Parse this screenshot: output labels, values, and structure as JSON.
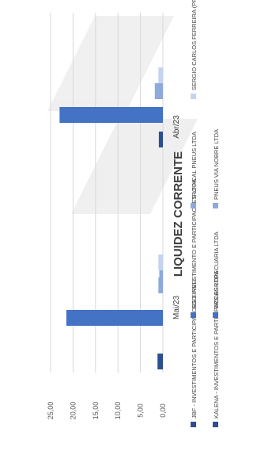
{
  "chart_data": {
    "type": "bar",
    "orientation": "horizontal-bars-rotated-view",
    "title": "LIQUIDEZ CORRENTE",
    "categories": [
      "Mai/23",
      "Abr/23"
    ],
    "value_axis": {
      "range": [
        0,
        25
      ],
      "ticks": [
        "0,00",
        "5,00",
        "10,00",
        "15,00",
        "20,00",
        "25,00"
      ],
      "grid": true
    },
    "series": [
      {
        "name": "JBF - INVESTIMENTOS E PARTICIPACOES EIRELI",
        "color": "#2e4f8f",
        "values": [
          1.2,
          null
        ]
      },
      {
        "name": "KALENA - INVESTIMENTOS E PARTICIPACOES LTDA",
        "color": "#2e4f8f",
        "values": [
          null,
          0.9
        ]
      },
      {
        "name": "SGO INVESTIMENTO E PARTICIPACOES LTDA",
        "color": "#4472c4",
        "values": [
          21.5,
          null
        ]
      },
      {
        "name": "SRS AGROPECUARIA LTDA",
        "color": "#4472c4",
        "values": [
          null,
          23.0
        ]
      },
      {
        "name": "TROPICAL PNEUS LTDA",
        "color": "#8ea9db",
        "values": [
          1.0,
          1.8
        ]
      },
      {
        "name": "PNEUS VIA NOBRE LTDA",
        "color": "#8ea9db",
        "values": [
          0.8,
          0.6
        ]
      },
      {
        "name": "SERGIO CARLOS FERREIRA (PRODUTOR RURAL)",
        "color": "#c5d3ee",
        "values": [
          1.0,
          1.0
        ]
      }
    ],
    "legend_position": "bottom"
  }
}
